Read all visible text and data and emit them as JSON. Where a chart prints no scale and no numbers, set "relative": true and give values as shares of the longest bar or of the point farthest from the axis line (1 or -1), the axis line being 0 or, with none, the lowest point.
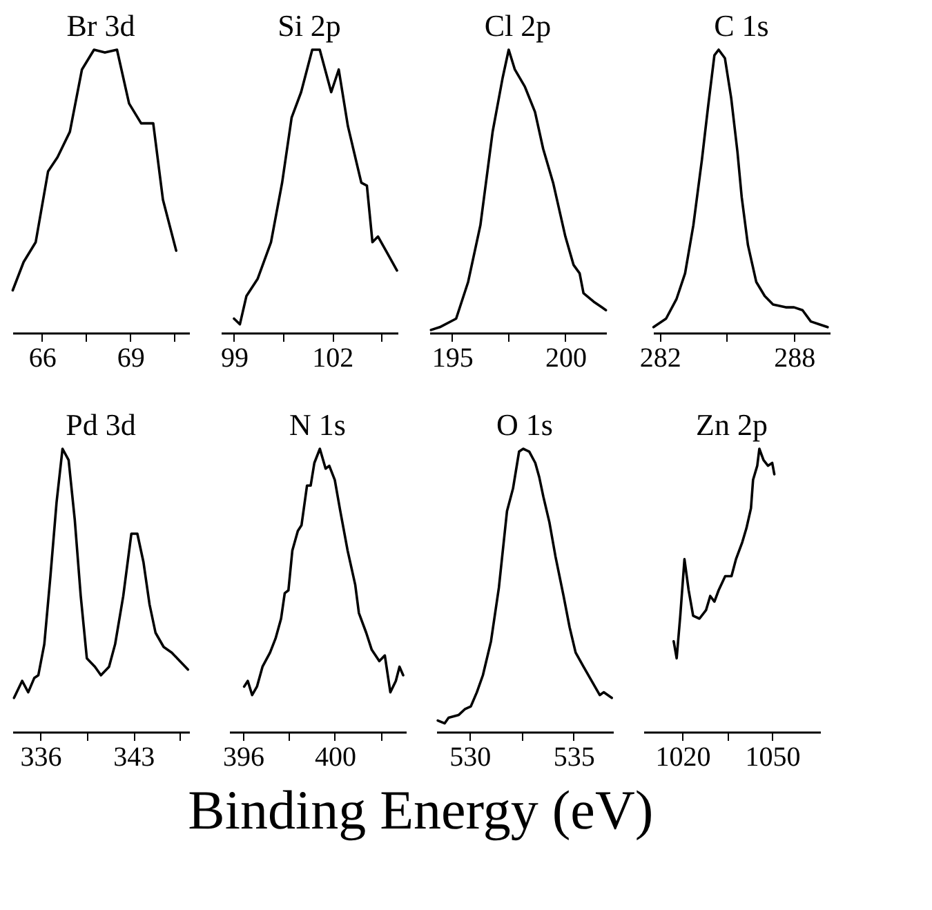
{
  "chart_data": [
    {
      "type": "line",
      "title": "Br 3d",
      "relative": true,
      "xlim": [
        65,
        71
      ],
      "xticks": [
        66,
        {
          "value": 67.5,
          "label": null
        },
        69,
        {
          "value": 70.5,
          "label": null
        }
      ],
      "x": [
        65.01,
        65.38,
        65.79,
        66.21,
        66.53,
        66.95,
        67.36,
        67.77,
        68.14,
        68.55,
        68.96,
        69.37,
        69.78,
        70.11,
        70.56
      ],
      "series": [
        {
          "color": "#000000",
          "line_style": "solid",
          "values": [
            0.15,
            0.25,
            0.32,
            0.57,
            0.62,
            0.71,
            0.93,
            1.0,
            0.99,
            1.0,
            0.81,
            0.74,
            0.74,
            0.47,
            0.29
          ]
        }
      ]
    },
    {
      "type": "line",
      "title": "Si 2p",
      "relative": true,
      "xlim": [
        98.6,
        104.0
      ],
      "xticks": [
        99,
        {
          "value": 100.5,
          "label": null
        },
        102,
        {
          "value": 103.5,
          "label": null
        }
      ],
      "x": [
        99.0,
        99.18,
        99.38,
        99.72,
        100.13,
        100.47,
        100.76,
        101.05,
        101.39,
        101.62,
        101.97,
        102.2,
        102.48,
        102.89,
        103.06,
        103.23,
        103.4,
        103.69,
        103.98
      ],
      "series": [
        {
          "color": "#000000",
          "line_style": "solid",
          "values": [
            0.05,
            0.03,
            0.13,
            0.19,
            0.32,
            0.53,
            0.76,
            0.85,
            1.0,
            1.0,
            0.85,
            0.93,
            0.73,
            0.53,
            0.52,
            0.32,
            0.34,
            0.28,
            0.22
          ]
        }
      ]
    },
    {
      "type": "line",
      "title": "Cl 2p",
      "relative": true,
      "xlim": [
        194,
        201.8
      ],
      "xticks": [
        195,
        {
          "value": 197.5,
          "label": null
        },
        200
      ],
      "x": [
        194.07,
        194.46,
        195.18,
        195.71,
        196.25,
        196.79,
        197.23,
        197.5,
        197.77,
        198.21,
        198.66,
        199.02,
        199.46,
        200.0,
        200.36,
        200.63,
        200.8,
        201.25,
        201.61,
        201.79
      ],
      "series": [
        {
          "color": "#000000",
          "line_style": "solid",
          "values": [
            0.01,
            0.02,
            0.05,
            0.18,
            0.38,
            0.71,
            0.9,
            1.0,
            0.93,
            0.87,
            0.78,
            0.65,
            0.53,
            0.34,
            0.24,
            0.21,
            0.14,
            0.11,
            0.09,
            0.08
          ]
        }
      ]
    },
    {
      "type": "line",
      "title": "C 1s",
      "relative": true,
      "xlim": [
        281.7,
        289.6
      ],
      "xticks": [
        282,
        {
          "value": 285,
          "label": null
        },
        288
      ],
      "x": [
        281.72,
        282.28,
        282.75,
        283.13,
        283.5,
        283.88,
        284.16,
        284.44,
        284.63,
        284.91,
        285.19,
        285.47,
        285.66,
        285.94,
        286.31,
        286.69,
        287.06,
        287.63,
        288.0,
        288.38,
        288.75,
        289.13,
        289.5
      ],
      "series": [
        {
          "color": "#000000",
          "line_style": "solid",
          "values": [
            0.02,
            0.05,
            0.12,
            0.21,
            0.38,
            0.61,
            0.8,
            0.98,
            1.0,
            0.97,
            0.83,
            0.64,
            0.48,
            0.31,
            0.18,
            0.13,
            0.1,
            0.09,
            0.09,
            0.08,
            0.04,
            0.03,
            0.02
          ]
        }
      ]
    },
    {
      "type": "line",
      "title": "Pd 3d",
      "relative": true,
      "xlim": [
        333.9,
        347.2
      ],
      "xticks": [
        336,
        {
          "value": 339.5,
          "label": null
        },
        343,
        {
          "value": 346.5,
          "label": null
        }
      ],
      "x": [
        334.02,
        334.63,
        335.09,
        335.54,
        335.85,
        336.3,
        336.76,
        337.22,
        337.67,
        338.13,
        338.59,
        339.04,
        339.5,
        340.11,
        340.56,
        341.17,
        341.63,
        342.24,
        342.85,
        343.3,
        343.76,
        344.22,
        344.67,
        345.28,
        345.89,
        346.5,
        347.11
      ],
      "series": [
        {
          "color": "#000000",
          "line_style": "solid",
          "values": [
            0.12,
            0.18,
            0.14,
            0.19,
            0.2,
            0.31,
            0.55,
            0.81,
            1.0,
            0.96,
            0.75,
            0.48,
            0.26,
            0.23,
            0.2,
            0.23,
            0.31,
            0.48,
            0.7,
            0.7,
            0.6,
            0.45,
            0.35,
            0.3,
            0.28,
            0.25,
            0.22
          ]
        }
      ]
    },
    {
      "type": "line",
      "title": "N 1s",
      "relative": true,
      "xlim": [
        395.4,
        403.1
      ],
      "xticks": [
        396,
        {
          "value": 398,
          "label": null
        },
        400,
        {
          "value": 402,
          "label": null
        }
      ],
      "x": [
        396.05,
        396.21,
        396.4,
        396.61,
        396.85,
        397.18,
        397.42,
        397.66,
        397.82,
        397.98,
        398.15,
        398.39,
        398.55,
        398.79,
        398.95,
        399.11,
        399.35,
        399.6,
        399.76,
        400.0,
        400.24,
        400.56,
        400.89,
        401.05,
        401.37,
        401.61,
        401.94,
        402.18,
        402.42,
        402.66,
        402.82,
        402.98
      ],
      "series": [
        {
          "color": "#000000",
          "line_style": "solid",
          "values": [
            0.16,
            0.18,
            0.13,
            0.16,
            0.23,
            0.28,
            0.33,
            0.4,
            0.49,
            0.5,
            0.64,
            0.71,
            0.73,
            0.87,
            0.87,
            0.95,
            1.0,
            0.93,
            0.94,
            0.89,
            0.78,
            0.64,
            0.52,
            0.42,
            0.35,
            0.29,
            0.25,
            0.27,
            0.14,
            0.18,
            0.23,
            0.2
          ]
        }
      ]
    },
    {
      "type": "line",
      "title": "O 1s",
      "relative": true,
      "xlim": [
        528.4,
        536.9
      ],
      "xticks": [
        530,
        {
          "value": 532.5,
          "label": null
        },
        535
      ],
      "x": [
        528.47,
        528.8,
        528.99,
        529.48,
        529.77,
        530.06,
        530.35,
        530.64,
        531.03,
        531.41,
        531.8,
        532.09,
        532.38,
        532.58,
        532.87,
        533.16,
        533.35,
        533.55,
        533.84,
        534.13,
        534.52,
        534.81,
        535.1,
        535.48,
        535.87,
        536.26,
        536.45,
        536.84
      ],
      "series": [
        {
          "color": "#000000",
          "line_style": "solid",
          "values": [
            0.04,
            0.03,
            0.05,
            0.06,
            0.08,
            0.09,
            0.14,
            0.2,
            0.32,
            0.51,
            0.78,
            0.86,
            0.99,
            1.0,
            0.99,
            0.95,
            0.9,
            0.83,
            0.74,
            0.62,
            0.48,
            0.37,
            0.28,
            0.23,
            0.18,
            0.13,
            0.14,
            0.12
          ]
        }
      ]
    },
    {
      "type": "line",
      "title": "Zn 2p",
      "relative": true,
      "xlim": [
        1007,
        1066
      ],
      "xticks": [
        1020,
        {
          "value": 1035,
          "label": null
        },
        1050
      ],
      "xlabel": "Binding Energy (eV)",
      "x": [
        1017.1,
        1018.1,
        1019.3,
        1020.7,
        1022.1,
        1023.6,
        1025.7,
        1027.9,
        1029.3,
        1030.7,
        1032.1,
        1034.3,
        1036.4,
        1037.9,
        1040.0,
        1041.4,
        1042.9,
        1043.6,
        1045.0,
        1045.7,
        1047.1,
        1048.6,
        1050.0,
        1050.7
      ],
      "series": [
        {
          "color": "#000000",
          "line_style": "solid",
          "values": [
            0.32,
            0.26,
            0.41,
            0.61,
            0.5,
            0.41,
            0.4,
            0.43,
            0.48,
            0.46,
            0.5,
            0.55,
            0.55,
            0.61,
            0.67,
            0.72,
            0.79,
            0.89,
            0.94,
            1.0,
            0.96,
            0.94,
            0.95,
            0.91
          ]
        }
      ]
    }
  ]
}
